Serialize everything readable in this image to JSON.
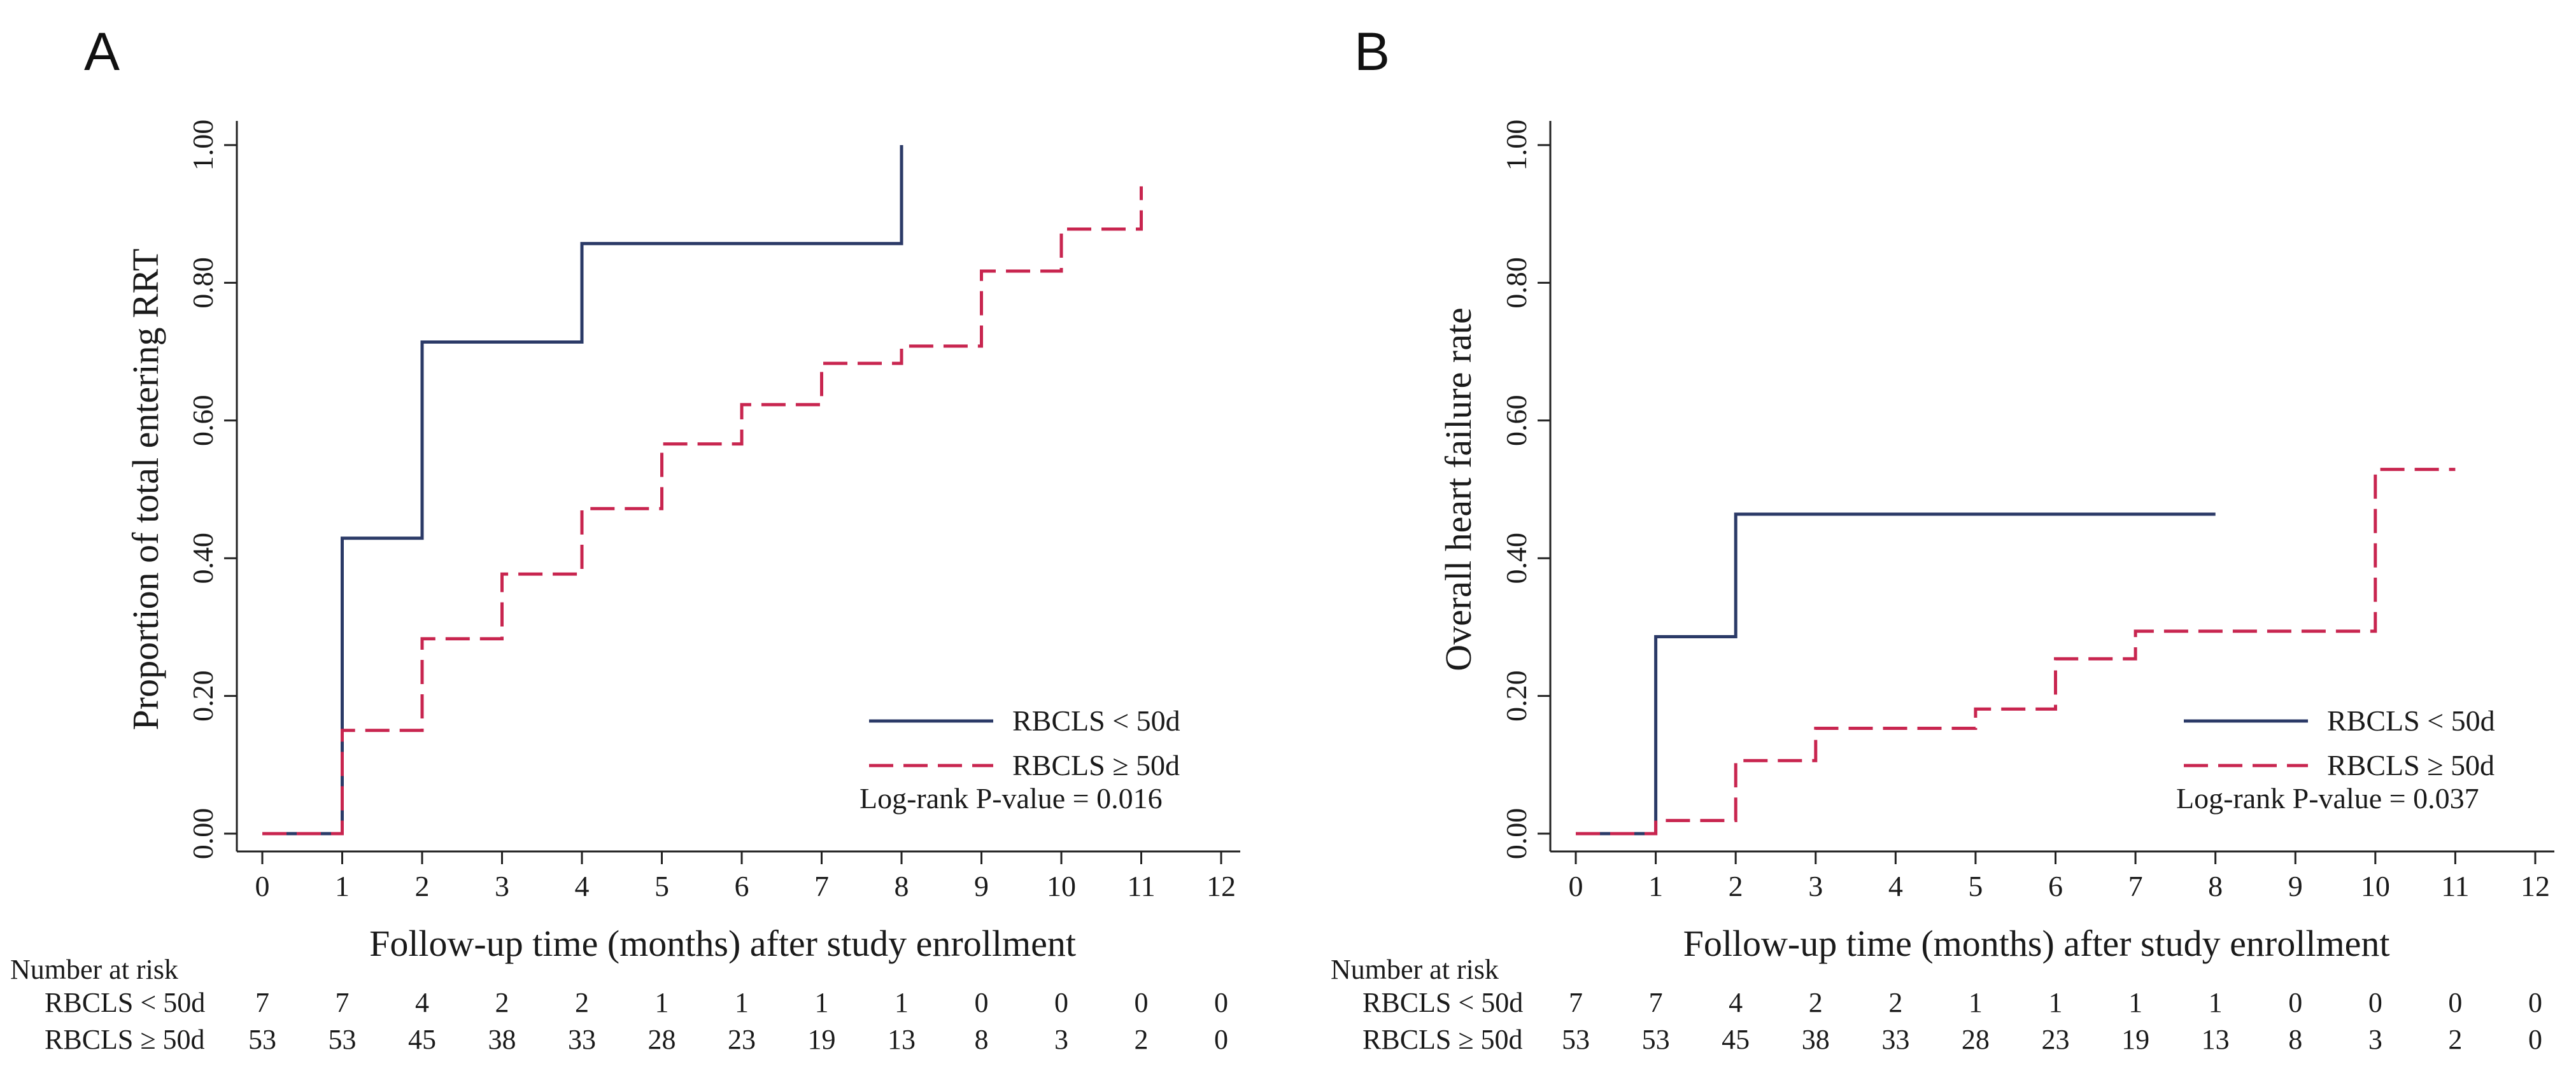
{
  "chart_data": [
    {
      "panel": "A",
      "type": "line",
      "step": true,
      "title": "",
      "xlabel": "Follow-up time (months) after study enrollment",
      "ylabel": "Proportion of total entering RRT",
      "xlim": [
        0,
        12
      ],
      "ylim": [
        0,
        1
      ],
      "x_ticks": [
        0,
        1,
        2,
        3,
        4,
        5,
        6,
        7,
        8,
        9,
        10,
        11,
        12
      ],
      "y_ticks": [
        "0.00",
        "0.20",
        "0.40",
        "0.60",
        "0.80",
        "1.00"
      ],
      "series": [
        {
          "name": "RBCLS < 50d",
          "color": "#2b3a67",
          "dash": "solid",
          "points": [
            [
              0,
              0
            ],
            [
              1,
              0
            ],
            [
              1,
              0.429
            ],
            [
              2,
              0.429
            ],
            [
              2,
              0.714
            ],
            [
              4,
              0.714
            ],
            [
              4,
              0.857
            ],
            [
              8,
              0.857
            ],
            [
              8,
              1.0
            ]
          ]
        },
        {
          "name": "RBCLS ≥ 50d",
          "color": "#c8254f",
          "dash": "dashed",
          "points": [
            [
              0,
              0
            ],
            [
              1,
              0
            ],
            [
              1,
              0.15
            ],
            [
              2,
              0.15
            ],
            [
              2,
              0.283
            ],
            [
              3,
              0.283
            ],
            [
              3,
              0.377
            ],
            [
              4,
              0.377
            ],
            [
              4,
              0.472
            ],
            [
              5,
              0.472
            ],
            [
              5,
              0.566
            ],
            [
              6,
              0.566
            ],
            [
              6,
              0.623
            ],
            [
              7,
              0.623
            ],
            [
              7,
              0.683
            ],
            [
              8,
              0.683
            ],
            [
              8,
              0.708
            ],
            [
              9,
              0.708
            ],
            [
              9,
              0.817
            ],
            [
              10,
              0.817
            ],
            [
              10,
              0.878
            ],
            [
              11,
              0.878
            ],
            [
              11,
              0.94
            ]
          ]
        }
      ],
      "legend": [
        {
          "label": "RBCLS < 50d",
          "style": "solid"
        },
        {
          "label": "RBCLS ≥ 50d",
          "style": "dashed"
        }
      ],
      "legend_position": "bottom-right",
      "annotation": "Log-rank P-value = 0.016",
      "risk_table": {
        "title": "Number at risk",
        "rows": [
          {
            "label": "RBCLS < 50d",
            "values": [
              "7",
              "7",
              "4",
              "2",
              "2",
              "1",
              "1",
              "1",
              "1",
              "0",
              "0",
              "0",
              "0"
            ]
          },
          {
            "label": "RBCLS ≥ 50d",
            "values": [
              "53",
              "53",
              "45",
              "38",
              "33",
              "28",
              "23",
              "19",
              "13",
              "8",
              "3",
              "2",
              "0"
            ]
          }
        ]
      }
    },
    {
      "panel": "B",
      "type": "line",
      "step": true,
      "title": "",
      "xlabel": "Follow-up time (months) after study enrollment",
      "ylabel": "Overall heart failure rate",
      "xlim": [
        0,
        12
      ],
      "ylim": [
        0,
        1
      ],
      "x_ticks": [
        0,
        1,
        2,
        3,
        4,
        5,
        6,
        7,
        8,
        9,
        10,
        11,
        12
      ],
      "y_ticks": [
        "0.00",
        "0.20",
        "0.40",
        "0.60",
        "0.80",
        "1.00"
      ],
      "series": [
        {
          "name": "RBCLS < 50d",
          "color": "#2b3a67",
          "dash": "solid",
          "points": [
            [
              0,
              0
            ],
            [
              1,
              0
            ],
            [
              1,
              0.286
            ],
            [
              2,
              0.286
            ],
            [
              2,
              0.464
            ],
            [
              8,
              0.464
            ]
          ]
        },
        {
          "name": "RBCLS ≥ 50d",
          "color": "#c8254f",
          "dash": "dashed",
          "points": [
            [
              0,
              0
            ],
            [
              1,
              0
            ],
            [
              1,
              0.019
            ],
            [
              2,
              0.019
            ],
            [
              2,
              0.106
            ],
            [
              3,
              0.106
            ],
            [
              3,
              0.153
            ],
            [
              5,
              0.153
            ],
            [
              5,
              0.181
            ],
            [
              6,
              0.181
            ],
            [
              6,
              0.254
            ],
            [
              7,
              0.254
            ],
            [
              7,
              0.294
            ],
            [
              10,
              0.294
            ],
            [
              10,
              0.529
            ],
            [
              11,
              0.529
            ]
          ]
        }
      ],
      "legend": [
        {
          "label": "RBCLS < 50d",
          "style": "solid"
        },
        {
          "label": "RBCLS ≥ 50d",
          "style": "dashed"
        }
      ],
      "legend_position": "bottom-right",
      "annotation": "Log-rank P-value = 0.037",
      "risk_table": {
        "title": "Number at risk",
        "rows": [
          {
            "label": "RBCLS < 50d",
            "values": [
              "7",
              "7",
              "4",
              "2",
              "2",
              "1",
              "1",
              "1",
              "1",
              "0",
              "0",
              "0",
              "0"
            ]
          },
          {
            "label": "RBCLS ≥ 50d",
            "values": [
              "53",
              "53",
              "45",
              "38",
              "33",
              "28",
              "23",
              "19",
              "13",
              "8",
              "3",
              "2",
              "0"
            ]
          }
        ]
      }
    }
  ]
}
